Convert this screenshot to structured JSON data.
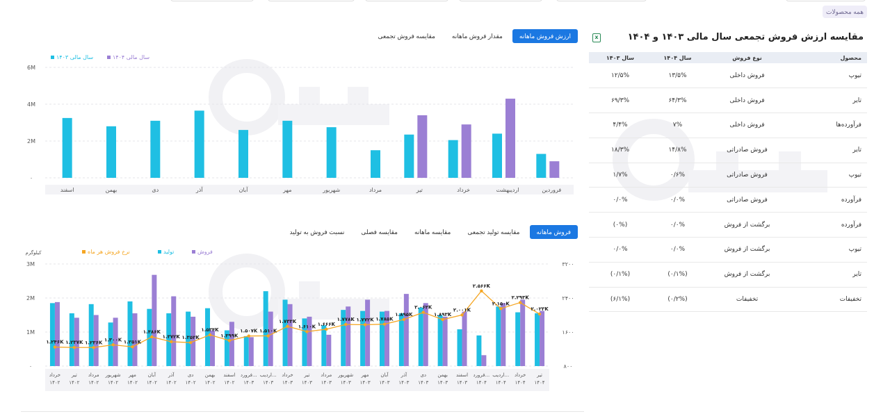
{
  "top": {
    "all_products_label": "همه محصولات"
  },
  "chart1": {
    "tabs": [
      "ارزش فروش ماهانه",
      "مقدار فروش ماهانه",
      "مقایسه فروش تجمعی"
    ],
    "active_tab": 0
  },
  "chart2": {
    "tabs": [
      "فروش ماهانه",
      "مقایسه تولید تجمعی",
      "مقایسه ماهانه",
      "مقایسه فصلی",
      "نسبت فروش به تولید"
    ],
    "active_tab": 0
  },
  "table": {
    "title": "مقایسه ارزش فروش تجمعی سال مالی ۱۴۰۳ و ۱۴۰۴",
    "headers": [
      "محصول",
      "نوع فروش",
      "سال ۱۴۰۴",
      "سال ۱۴۰۳"
    ],
    "rows": [
      [
        "تیوپ",
        "فروش داخلی",
        "۱۳/۵%",
        "۱۲/۵%"
      ],
      [
        "تایر",
        "فروش داخلی",
        "۶۴/۳%",
        "۶۹/۳%"
      ],
      [
        "فرآورده‌ها",
        "فروش داخلی",
        "۷%",
        "۴/۴%"
      ],
      [
        "تایر",
        "فروش صادراتی",
        "۱۴/۸%",
        "۱۸/۳%"
      ],
      [
        "تیوپ",
        "فروش صادراتی",
        "۰/۶%",
        "۱/۷%"
      ],
      [
        "فرآورده",
        "فروش صادراتی",
        "۰/۰%",
        "۰/۰%"
      ],
      [
        "فرآورده",
        "برگشت از فروش",
        "۰/۰%",
        "(۰%)"
      ],
      [
        "تیوپ",
        "برگشت از فروش",
        "۰/۰%",
        "۰/۰%"
      ],
      [
        "تایر",
        "برگشت از فروش",
        "(۰/۱%)",
        "(۰/۱%)"
      ],
      [
        "تخفیفات",
        "تخفیفات",
        "(۰/۲%)",
        "(۶/۱%)"
      ]
    ]
  },
  "colors": {
    "cyan": "#1fbfe3",
    "purple": "#9b7fd4",
    "orange": "#f5a623",
    "accent": "#1b78e2"
  },
  "chart_data": [
    {
      "type": "bar",
      "title": "",
      "categories": [
        "فروردین",
        "اردیبهشت",
        "خرداد",
        "تیر",
        "مرداد",
        "شهریور",
        "مهر",
        "آبان",
        "آذر",
        "دی",
        "بهمن",
        "اسفند"
      ],
      "series": [
        {
          "name": "سال مالی ۱۴۰۳",
          "values": [
            1.3,
            2.4,
            2.05,
            2.35,
            1.5,
            2.75,
            3.1,
            2.6,
            3.65,
            3.1,
            2.8,
            3.25
          ]
        },
        {
          "name": "سال مالی ۱۴۰۴",
          "values": [
            0.9,
            4.3,
            2.9,
            3.4,
            null,
            null,
            null,
            null,
            null,
            null,
            null,
            null
          ]
        }
      ],
      "y_ticks": [
        "۰",
        "2M",
        "4M",
        "6M"
      ],
      "ylim": [
        0,
        6
      ],
      "grid": true,
      "legend": "top-left"
    },
    {
      "type": "bar",
      "title": "",
      "ylabel_left": "کیلوگرم",
      "categories": [
        [
          "خرداد",
          "۱۴۰۲"
        ],
        [
          "تیر",
          "۱۴۰۲"
        ],
        [
          "مرداد",
          "۱۴۰۲"
        ],
        [
          "شهریور",
          "۱۴۰۲"
        ],
        [
          "مهر",
          "۱۴۰۲"
        ],
        [
          "آبان",
          "۱۴۰۲"
        ],
        [
          "آذر",
          "۱۴۰۲"
        ],
        [
          "دی",
          "۱۴۰۲"
        ],
        [
          "بهمن",
          "۱۴۰۲"
        ],
        [
          "اسفند",
          "۱۴۰۲"
        ],
        [
          "فرورد...",
          "۱۴۰۳"
        ],
        [
          "اردیب...",
          "۱۴۰۳"
        ],
        [
          "خرداد",
          "۱۴۰۳"
        ],
        [
          "تیر",
          "۱۴۰۳"
        ],
        [
          "مرداد",
          "۱۴۰۳"
        ],
        [
          "شهریور",
          "۱۴۰۳"
        ],
        [
          "مهر",
          "۱۴۰۳"
        ],
        [
          "آبان",
          "۱۴۰۳"
        ],
        [
          "آذر",
          "۱۴۰۳"
        ],
        [
          "دی",
          "۱۴۰۳"
        ],
        [
          "بهمن",
          "۱۴۰۳"
        ],
        [
          "اسفند",
          "۱۴۰۳"
        ],
        [
          "فرورد...",
          "۱۴۰۴"
        ],
        [
          "اردیب...",
          "۱۴۰۴"
        ],
        [
          "خرداد",
          "۱۴۰۴"
        ],
        [
          "تیر",
          "۱۴۰۴"
        ]
      ],
      "series": [
        {
          "name": "تولید",
          "values": [
            1.85,
            1.55,
            1.82,
            1.28,
            1.9,
            1.68,
            1.55,
            1.6,
            1.7,
            1.05,
            0.88,
            2.2,
            1.95,
            1.4,
            1.2,
            1.65,
            1.62,
            1.6,
            1.55,
            1.72,
            1.5,
            1.08,
            0.9,
            1.75,
            1.58,
            1.55
          ]
        },
        {
          "name": "فروش",
          "values": [
            1.88,
            1.42,
            1.5,
            1.42,
            1.55,
            2.68,
            2.05,
            1.45,
            1.05,
            1.3,
            0.85,
            1.6,
            1.82,
            1.45,
            0.92,
            1.75,
            1.95,
            1.62,
            2.12,
            1.85,
            1.45,
            1.6,
            0.32,
            1.85,
            1.95,
            1.62
          ]
        },
        {
          "name": "نرخ فروش هر ماه",
          "values": [
            1246,
            1237,
            1236,
            1300,
            1251,
            1486,
            1372,
            1352,
            1534,
            1399,
            1507,
            1510,
            1733,
            1610,
            1666,
            1778,
            1772,
            1785,
            1895,
            2062,
            1893,
            2001,
            2566,
            2150,
            2293,
            2023
          ],
          "labels": [
            "۱.۲۴۶K",
            "۱.۲۳۷K",
            "۱.۲۳۶K",
            "۱.۳۰۰K",
            "۱.۲۵۱K",
            "۱.۴۸۶K",
            "۱.۳۷۲K",
            "۱.۳۵۲K",
            "۱.۵۳۴K",
            "۱.۳۹۹K",
            "۱.۵۰۷K",
            "۱.۵۱۰K",
            "۱.۷۳۳K",
            "۱.۶۱۰K",
            "۱.۶۶۶K",
            "۱.۷۷۸K",
            "۱.۷۷۲K",
            "۱.۷۸۵K",
            "۱.۸۹۵K",
            "۲.۰۶۲K",
            "۱.۸۹۳K",
            "۲.۰۰۱K",
            "۲.۵۶۶K",
            "۲.۱۵۰K",
            "۲.۲۹۳K",
            "۲.۰۲۳K"
          ]
        }
      ],
      "y_left_ticks": [
        "۰",
        "1M",
        "2M",
        "3M"
      ],
      "ylim_left": [
        0,
        3
      ],
      "y_right_ticks": [
        "۸۰۰",
        "۱۶۰۰",
        "۲۴۰۰",
        "۳۲۰۰"
      ],
      "ylim_right": [
        800,
        3200
      ],
      "grid": true,
      "legend": "top-left"
    }
  ]
}
